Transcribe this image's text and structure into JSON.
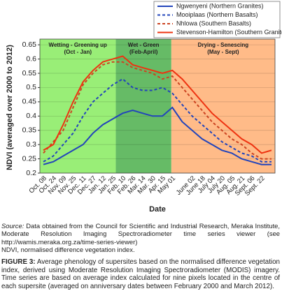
{
  "chart_data": {
    "type": "line",
    "y_label": "NDVI (averaged over 2000 to 2012)",
    "x_label": "Date",
    "categories": [
      "Oct. 08",
      "Oct. 24",
      "Nov. 09",
      "Nov. 25",
      "Dec. 11",
      "Dec. 27",
      "Jan. 12",
      "Jan. 25",
      "Feb. 10",
      "Feb. 26",
      "Mar. 14",
      "Mar. 30",
      "Apr. 15",
      "May 01",
      null,
      "June 02",
      "June 18",
      "July 04",
      "July 20",
      "Aug. 05",
      "Aug. 21",
      "Sept. 06",
      "Sept. 22",
      null
    ],
    "regions": [
      {
        "label": "Wetting - Greening up",
        "sublabel": "(Oct - Jan)",
        "color": "#99ee77"
      },
      {
        "label": "Wet - Green",
        "sublabel": "(Feb-April)",
        "color": "#66bb66"
      },
      {
        "label": "Drying - Senescing",
        "sublabel": "(May - Sept)",
        "color": "#ffbb88"
      }
    ],
    "series": [
      {
        "name": "Ngwenyeni (Northern Granites)",
        "color": "#2244bb",
        "dash": false,
        "values": [
          0.23,
          0.24,
          0.26,
          0.28,
          0.3,
          0.34,
          0.37,
          0.39,
          0.41,
          0.42,
          0.41,
          0.4,
          0.4,
          0.43,
          0.38,
          0.35,
          0.32,
          0.3,
          0.28,
          0.27,
          0.25,
          0.24,
          0.23,
          0.23
        ]
      },
      {
        "name": "Mooiplaas (Northern Basalts)",
        "color": "#2244bb",
        "dash": true,
        "values": [
          0.24,
          0.26,
          0.3,
          0.34,
          0.4,
          0.45,
          0.48,
          0.51,
          0.53,
          0.5,
          0.49,
          0.49,
          0.5,
          0.48,
          0.44,
          0.4,
          0.37,
          0.34,
          0.31,
          0.29,
          0.27,
          0.26,
          0.24,
          0.24
        ]
      },
      {
        "name": "Nhlowa (Southern Basalts)",
        "color": "#cc4422",
        "dash": true,
        "values": [
          0.27,
          0.31,
          0.35,
          0.43,
          0.51,
          0.55,
          0.58,
          0.59,
          0.59,
          0.57,
          0.56,
          0.55,
          0.53,
          0.54,
          0.5,
          0.46,
          0.42,
          0.38,
          0.35,
          0.32,
          0.3,
          0.27,
          0.25,
          0.25
        ]
      },
      {
        "name": "Stevenson-Hamilton (Southern Granites)",
        "color": "#ee3311",
        "dash": false,
        "values": [
          0.28,
          0.3,
          0.37,
          0.45,
          0.52,
          0.56,
          0.59,
          0.6,
          0.61,
          0.58,
          0.57,
          0.56,
          0.55,
          0.56,
          0.53,
          0.49,
          0.45,
          0.41,
          0.38,
          0.35,
          0.32,
          0.3,
          0.27,
          0.28
        ]
      }
    ],
    "ylim": [
      0.2,
      0.67
    ],
    "yticks": [
      0.2,
      0.25,
      0.3,
      0.35,
      0.4,
      0.45,
      0.5,
      0.55,
      0.6,
      0.65
    ],
    "grid": true,
    "legend": "top-right"
  },
  "caption": {
    "source_label": "Source:",
    "source_text": "Data obtained from the Council for Scientific and Industrial Research, Meraka Institute, Moderate Resolution Imaging Spectroradiometer time series viewer (see http://wamis.meraka.org.za/time-series-viewer)",
    "abbreviation": "NDVI, normalised difference vegetation index.",
    "figure_label": "FIGURE 3:",
    "figure_text": "Average phenology of supersites based on the normalised difference vegetation index, derived using Moderate Resolution Imaging Spectroradiometer (MODIS) imagery. Time series are based on average index calculated for nine pixels located in the centre of each supersite (averaged on anniversary dates between February 2000 and March 2012)."
  }
}
